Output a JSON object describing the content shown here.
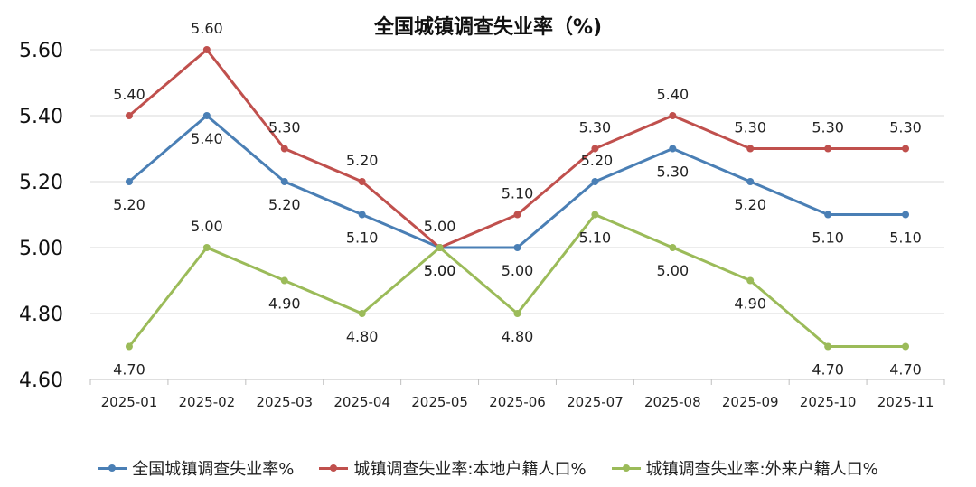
{
  "chart_data": {
    "type": "line",
    "title": "全国城镇调查失业率（%)",
    "xlabel": "",
    "ylabel": "",
    "categories": [
      "2025-01",
      "2025-02",
      "2025-03",
      "2025-04",
      "2025-05",
      "2025-06",
      "2025-07",
      "2025-08",
      "2025-09",
      "2025-10",
      "2025-11"
    ],
    "ylim": [
      4.6,
      5.6
    ],
    "yticks": [
      "4.60",
      "4.80",
      "5.00",
      "5.20",
      "5.40",
      "5.60"
    ],
    "grid": true,
    "legend_position": "bottom",
    "series": [
      {
        "name": "全国城镇调查失业率%",
        "color": "#4a7fb5",
        "values": [
          5.2,
          5.4,
          5.2,
          5.1,
          5.0,
          5.0,
          5.2,
          5.3,
          5.2,
          5.1,
          5.1
        ],
        "labels": [
          "5.20",
          "5.40",
          "5.20",
          "5.10",
          "5.00",
          "5.00",
          "5.20",
          "5.30",
          "5.20",
          "5.10",
          "5.10"
        ]
      },
      {
        "name": "城镇调查失业率:本地户籍人口%",
        "color": "#c0504d",
        "values": [
          5.4,
          5.6,
          5.3,
          5.2,
          5.0,
          5.1,
          5.3,
          5.4,
          5.3,
          5.3,
          5.3
        ],
        "labels": [
          "5.40",
          "5.60",
          "5.30",
          "5.20",
          "5.00",
          "5.10",
          "5.30",
          "5.40",
          "5.30",
          "5.30",
          "5.30"
        ]
      },
      {
        "name": "城镇调查失业率:外来户籍人口%",
        "color": "#9bbb59",
        "values": [
          4.7,
          5.0,
          4.9,
          4.8,
          5.0,
          4.8,
          5.1,
          5.0,
          4.9,
          4.7,
          4.7
        ],
        "labels": [
          "4.70",
          "5.00",
          "4.90",
          "4.80",
          "5.00",
          "4.80",
          "5.10",
          "5.00",
          "4.90",
          "4.70",
          "4.70"
        ]
      }
    ]
  }
}
